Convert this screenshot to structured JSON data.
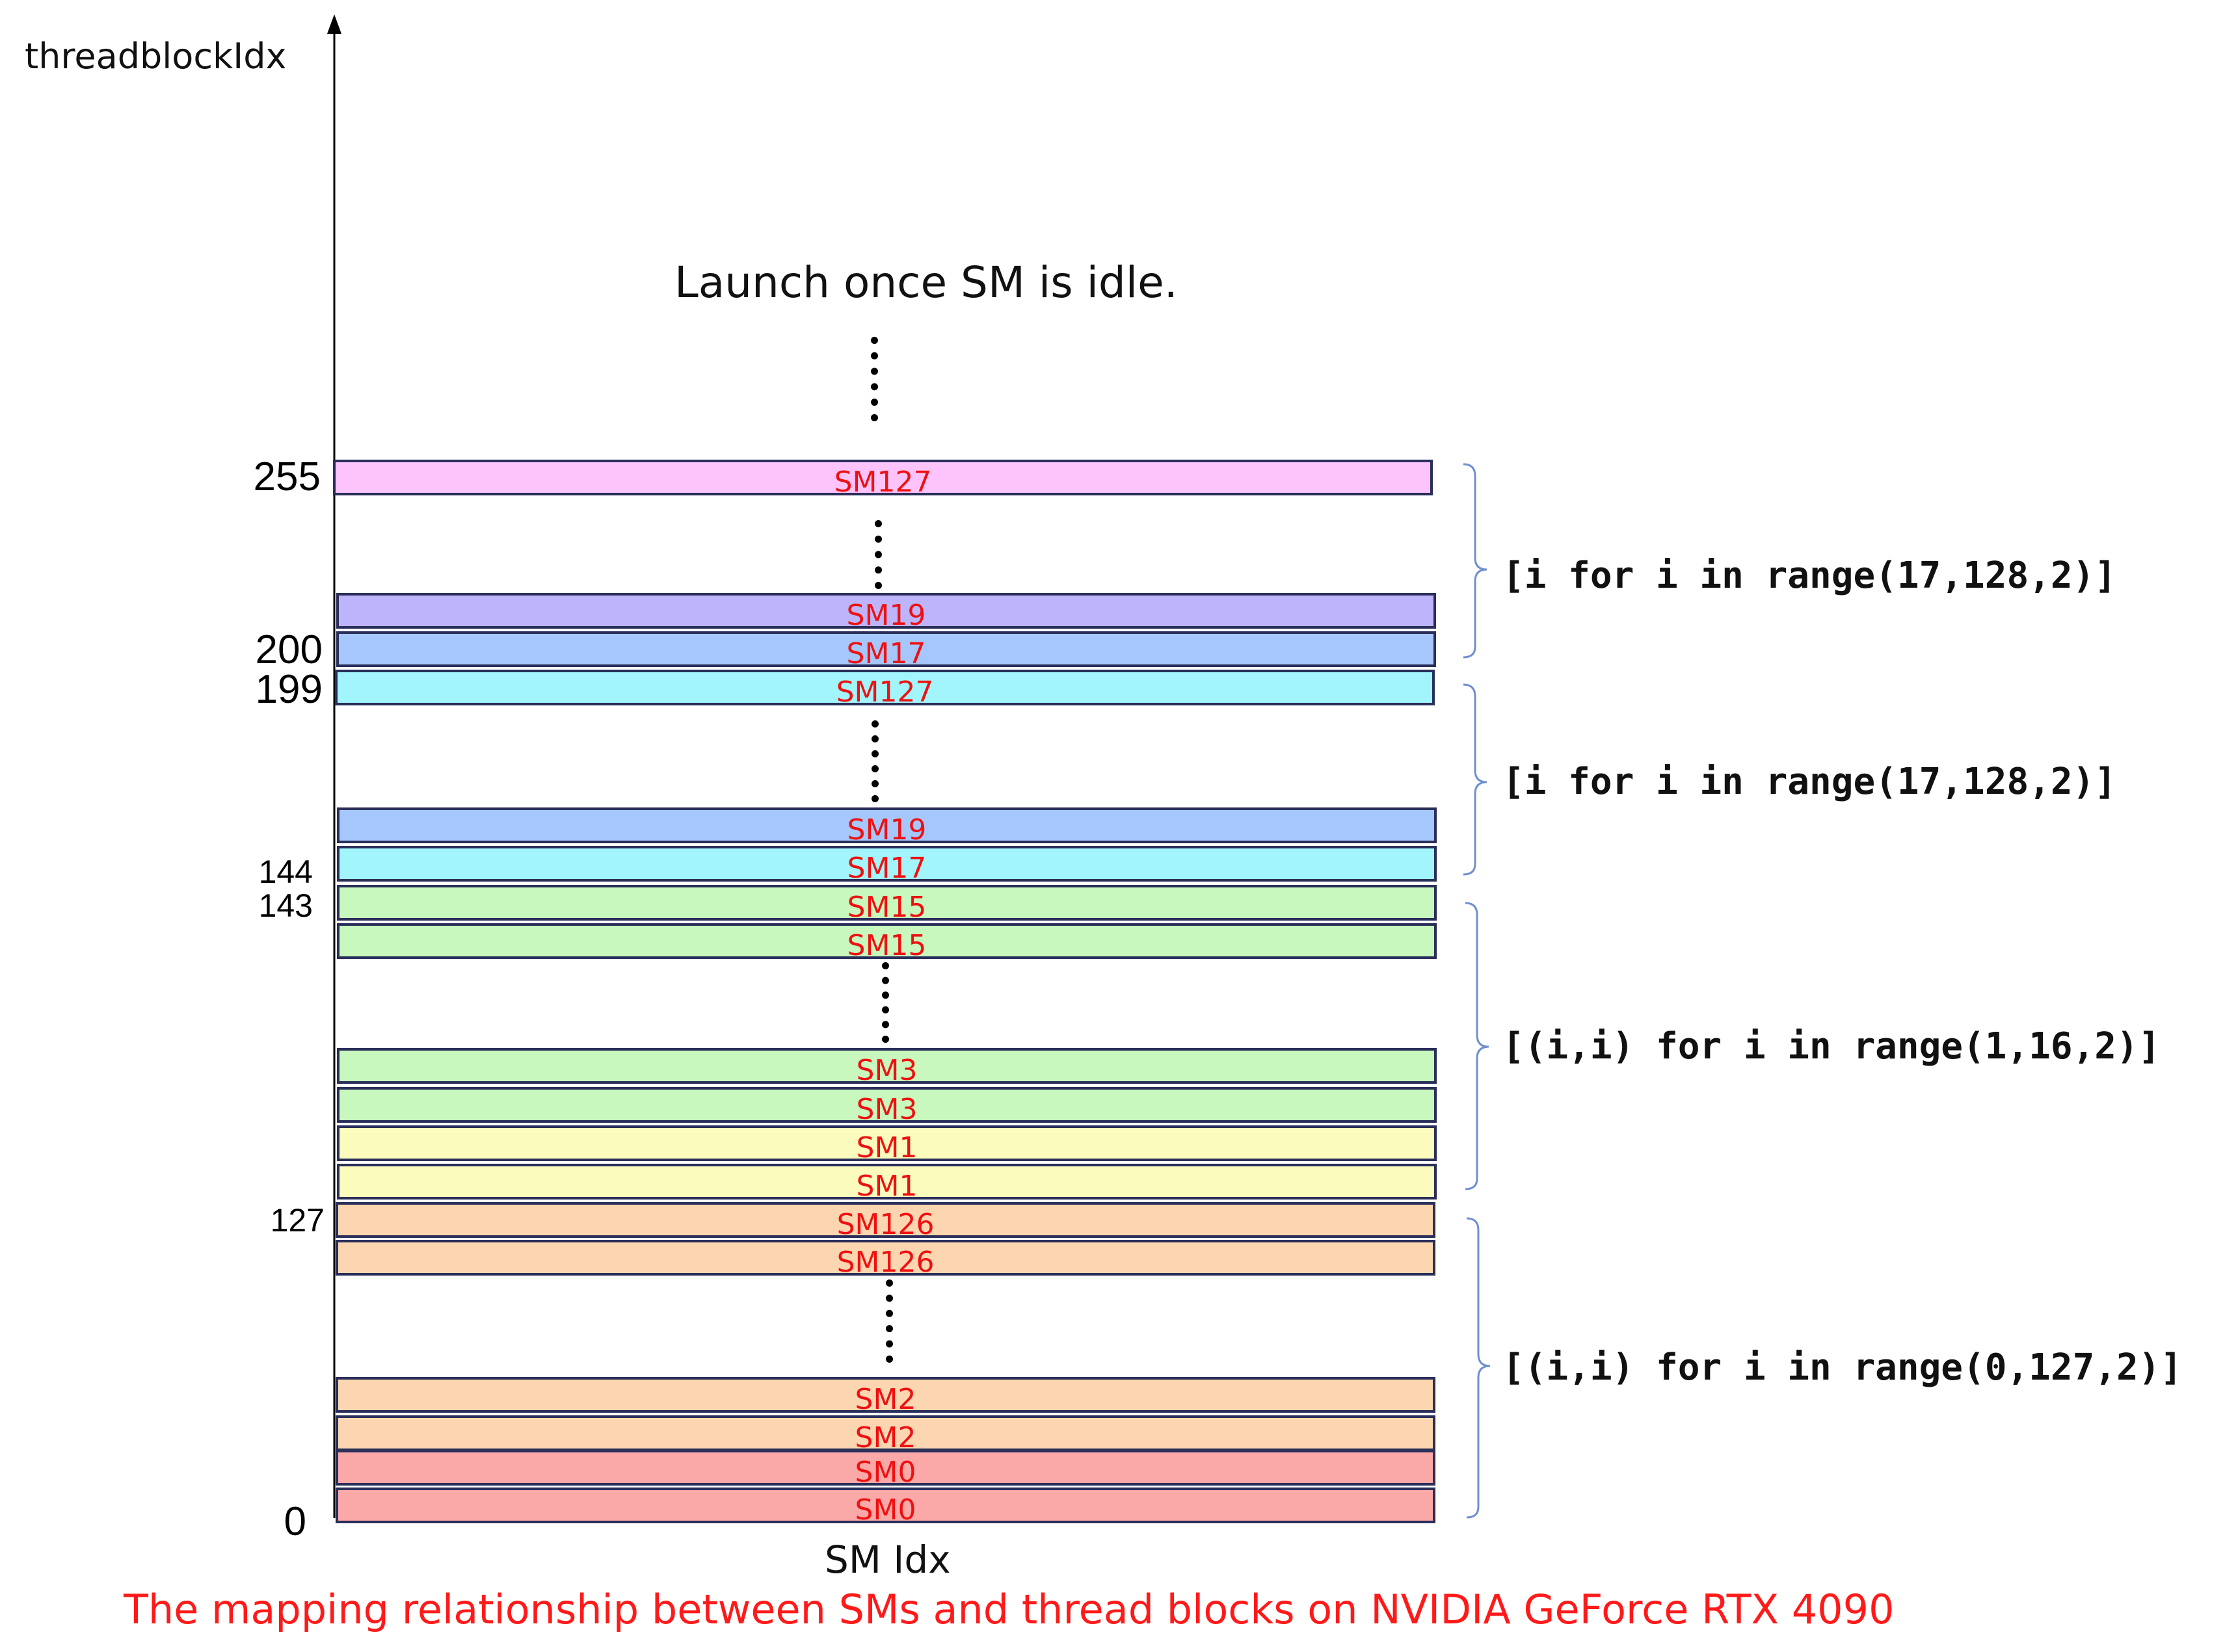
{
  "axes": {
    "y_label": "threadblockIdx",
    "x_label": "SM Idx"
  },
  "note": "Launch once SM is idle.",
  "caption": "The mapping relationship between SMs and thread blocks on NVIDIA GeForce RTX 4090",
  "y_ticks": [
    "255",
    "200",
    "199",
    "144",
    "143",
    "127",
    "0"
  ],
  "bars": [
    {
      "label": "SM127",
      "color": "#fcc4fb"
    },
    {
      "label": "SM19",
      "color": "#bdb4fb"
    },
    {
      "label": "SM17",
      "color": "#a6c7fb"
    },
    {
      "label": "SM127",
      "color": "#a2f5fb"
    },
    {
      "label": "SM19",
      "color": "#a6c7fb"
    },
    {
      "label": "SM17",
      "color": "#a2f5fb"
    },
    {
      "label": "SM15",
      "color": "#c8f8bd"
    },
    {
      "label": "SM15",
      "color": "#c8f8bd"
    },
    {
      "label": "SM3",
      "color": "#c8f8bd"
    },
    {
      "label": "SM3",
      "color": "#c8f8bd"
    },
    {
      "label": "SM1",
      "color": "#fbfbbd"
    },
    {
      "label": "SM1",
      "color": "#fbfbbd"
    },
    {
      "label": "SM126",
      "color": "#fbd6b0"
    },
    {
      "label": "SM126",
      "color": "#fbd6b0"
    },
    {
      "label": "SM2",
      "color": "#fbd6b0"
    },
    {
      "label": "SM2",
      "color": "#fbd6b0"
    },
    {
      "label": "SM0",
      "color": "#fba8a8"
    },
    {
      "label": "SM0",
      "color": "#fba8a8"
    }
  ],
  "groups": [
    {
      "label": "[i for i in range(17,128,2)]"
    },
    {
      "label": "[i for i in range(17,128,2)]"
    },
    {
      "label": "[(i,i) for i in range(1,16,2)]"
    },
    {
      "label": "[(i,i) for i in range(0,127,2)]"
    }
  ],
  "colors": {
    "bar_border": "#2a2f5a",
    "bar_text": "#ee1111",
    "brace": "#6f8fcf",
    "caption": "#ff1a1a"
  }
}
